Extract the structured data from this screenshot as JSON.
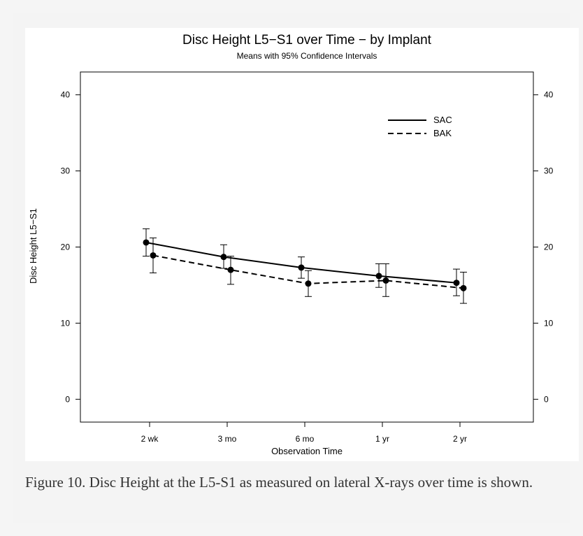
{
  "figure": {
    "caption": "Figure 10. Disc Height at the L5-S1 as measured on lateral X-rays over time is shown."
  },
  "chart_data": {
    "type": "line",
    "title": "Disc Height L5−S1 over Time − by Implant",
    "subtitle": "Means with 95% Confidence Intervals",
    "xlabel": "Observation Time",
    "ylabel": "Disc Height L5−S1",
    "categories": [
      "2 wk",
      "3 mo",
      "6 mo",
      "1 yr",
      "2 yr"
    ],
    "ylim": [
      -3,
      43
    ],
    "yticks": [
      0,
      10,
      20,
      30,
      40
    ],
    "grid": false,
    "legend_position": "top-right",
    "series": [
      {
        "name": "SAC",
        "line_style": "solid",
        "values": [
          20.6,
          18.7,
          17.3,
          16.2,
          15.3
        ],
        "ci_lower": [
          18.8,
          17.2,
          15.9,
          14.7,
          13.6
        ],
        "ci_upper": [
          22.4,
          20.3,
          18.7,
          17.8,
          17.1
        ]
      },
      {
        "name": "BAK",
        "line_style": "dashed",
        "values": [
          18.9,
          17.0,
          15.2,
          15.6,
          14.6
        ],
        "ci_lower": [
          16.6,
          15.1,
          13.5,
          13.5,
          12.6
        ],
        "ci_upper": [
          21.2,
          18.8,
          16.9,
          17.8,
          16.7
        ]
      }
    ]
  }
}
